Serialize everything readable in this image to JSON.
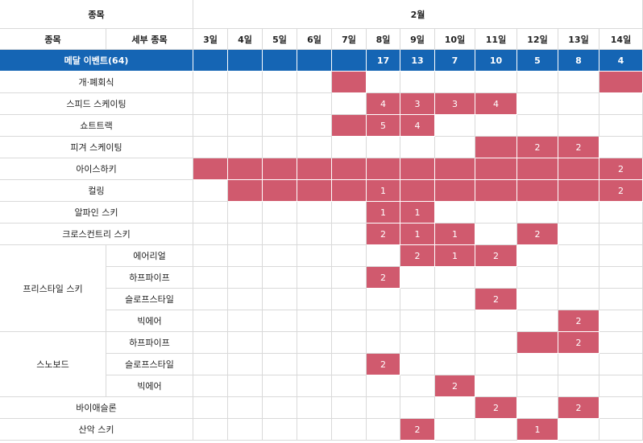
{
  "header": {
    "sport_label": "종목",
    "month_label": "2월",
    "sub_sport_label": "종목",
    "detail_label": "세부 종목"
  },
  "days": [
    "3일",
    "4일",
    "5일",
    "6일",
    "7일",
    "8일",
    "9일",
    "10일",
    "11일",
    "12일",
    "13일",
    "14일"
  ],
  "medal_row": {
    "label": "메달 이벤트(64)",
    "counts": [
      "",
      "",
      "",
      "",
      "",
      "17",
      "13",
      "7",
      "10",
      "5",
      "8",
      "4"
    ]
  },
  "groups": [
    {
      "name": "프리스타일 스키"
    },
    {
      "name": "스노보드"
    }
  ],
  "rows": [
    {
      "label": "개·폐회식",
      "group": null,
      "cells": [
        {
          "day": 4
        },
        {
          "day": 11
        }
      ]
    },
    {
      "label": "스피드 스케이팅",
      "group": null,
      "cells": [
        {
          "day": 5,
          "text": "4"
        },
        {
          "day": 6,
          "text": "3"
        },
        {
          "day": 7,
          "text": "3"
        },
        {
          "day": 8,
          "text": "4"
        }
      ]
    },
    {
      "label": "쇼트트랙",
      "group": null,
      "cells": [
        {
          "day": 4
        },
        {
          "day": 5,
          "text": "5"
        },
        {
          "day": 6,
          "text": "4"
        }
      ]
    },
    {
      "label": "피겨 스케이팅",
      "group": null,
      "cells": [
        {
          "day": 8
        },
        {
          "day": 9,
          "text": "2"
        },
        {
          "day": 10,
          "text": "2"
        }
      ]
    },
    {
      "label": "아이스하키",
      "group": null,
      "cells": [
        {
          "day": 0
        },
        {
          "day": 1
        },
        {
          "day": 2
        },
        {
          "day": 3
        },
        {
          "day": 4
        },
        {
          "day": 5
        },
        {
          "day": 6
        },
        {
          "day": 7
        },
        {
          "day": 8
        },
        {
          "day": 9
        },
        {
          "day": 10
        },
        {
          "day": 11,
          "text": "2"
        }
      ]
    },
    {
      "label": "컬링",
      "group": null,
      "cells": [
        {
          "day": 1
        },
        {
          "day": 2
        },
        {
          "day": 3
        },
        {
          "day": 4
        },
        {
          "day": 5,
          "text": "1"
        },
        {
          "day": 6
        },
        {
          "day": 7
        },
        {
          "day": 8
        },
        {
          "day": 9
        },
        {
          "day": 10
        },
        {
          "day": 11,
          "text": "2"
        }
      ]
    },
    {
      "label": "알파인 스키",
      "group": null,
      "cells": [
        {
          "day": 5,
          "text": "1"
        },
        {
          "day": 6,
          "text": "1"
        }
      ]
    },
    {
      "label": "크로스컨트리 스키",
      "group": null,
      "cells": [
        {
          "day": 5,
          "text": "2"
        },
        {
          "day": 6,
          "text": "1"
        },
        {
          "day": 7,
          "text": "1"
        },
        {
          "day": 9,
          "text": "2"
        }
      ]
    },
    {
      "label": "에어리얼",
      "group": 0,
      "cells": [
        {
          "day": 6,
          "text": "2"
        },
        {
          "day": 7,
          "text": "1"
        },
        {
          "day": 8,
          "text": "2"
        }
      ]
    },
    {
      "label": "하프파이프",
      "group": 0,
      "cells": [
        {
          "day": 5,
          "text": "2"
        }
      ]
    },
    {
      "label": "슬로프스타일",
      "group": 0,
      "cells": [
        {
          "day": 8,
          "text": "2"
        }
      ]
    },
    {
      "label": "빅에어",
      "group": 0,
      "cells": [
        {
          "day": 10,
          "text": "2"
        }
      ]
    },
    {
      "label": "하프파이프",
      "group": 1,
      "cells": [
        {
          "day": 9
        },
        {
          "day": 10,
          "text": "2"
        }
      ]
    },
    {
      "label": "슬로프스타일",
      "group": 1,
      "cells": [
        {
          "day": 5,
          "text": "2"
        }
      ]
    },
    {
      "label": "빅에어",
      "group": 1,
      "cells": [
        {
          "day": 7,
          "text": "2"
        }
      ]
    },
    {
      "label": "바이애슬론",
      "group": null,
      "cells": [
        {
          "day": 8,
          "text": "2"
        },
        {
          "day": 10,
          "text": "2"
        }
      ]
    },
    {
      "label": "산악 스키",
      "group": null,
      "cells": [
        {
          "day": 6,
          "text": "2"
        },
        {
          "day": 9,
          "text": "1"
        }
      ]
    }
  ],
  "colors": {
    "medal_row_bg": "#1565b4",
    "event_cell_bg": "#d05a6e",
    "grid_line": "#d9d9d9"
  }
}
